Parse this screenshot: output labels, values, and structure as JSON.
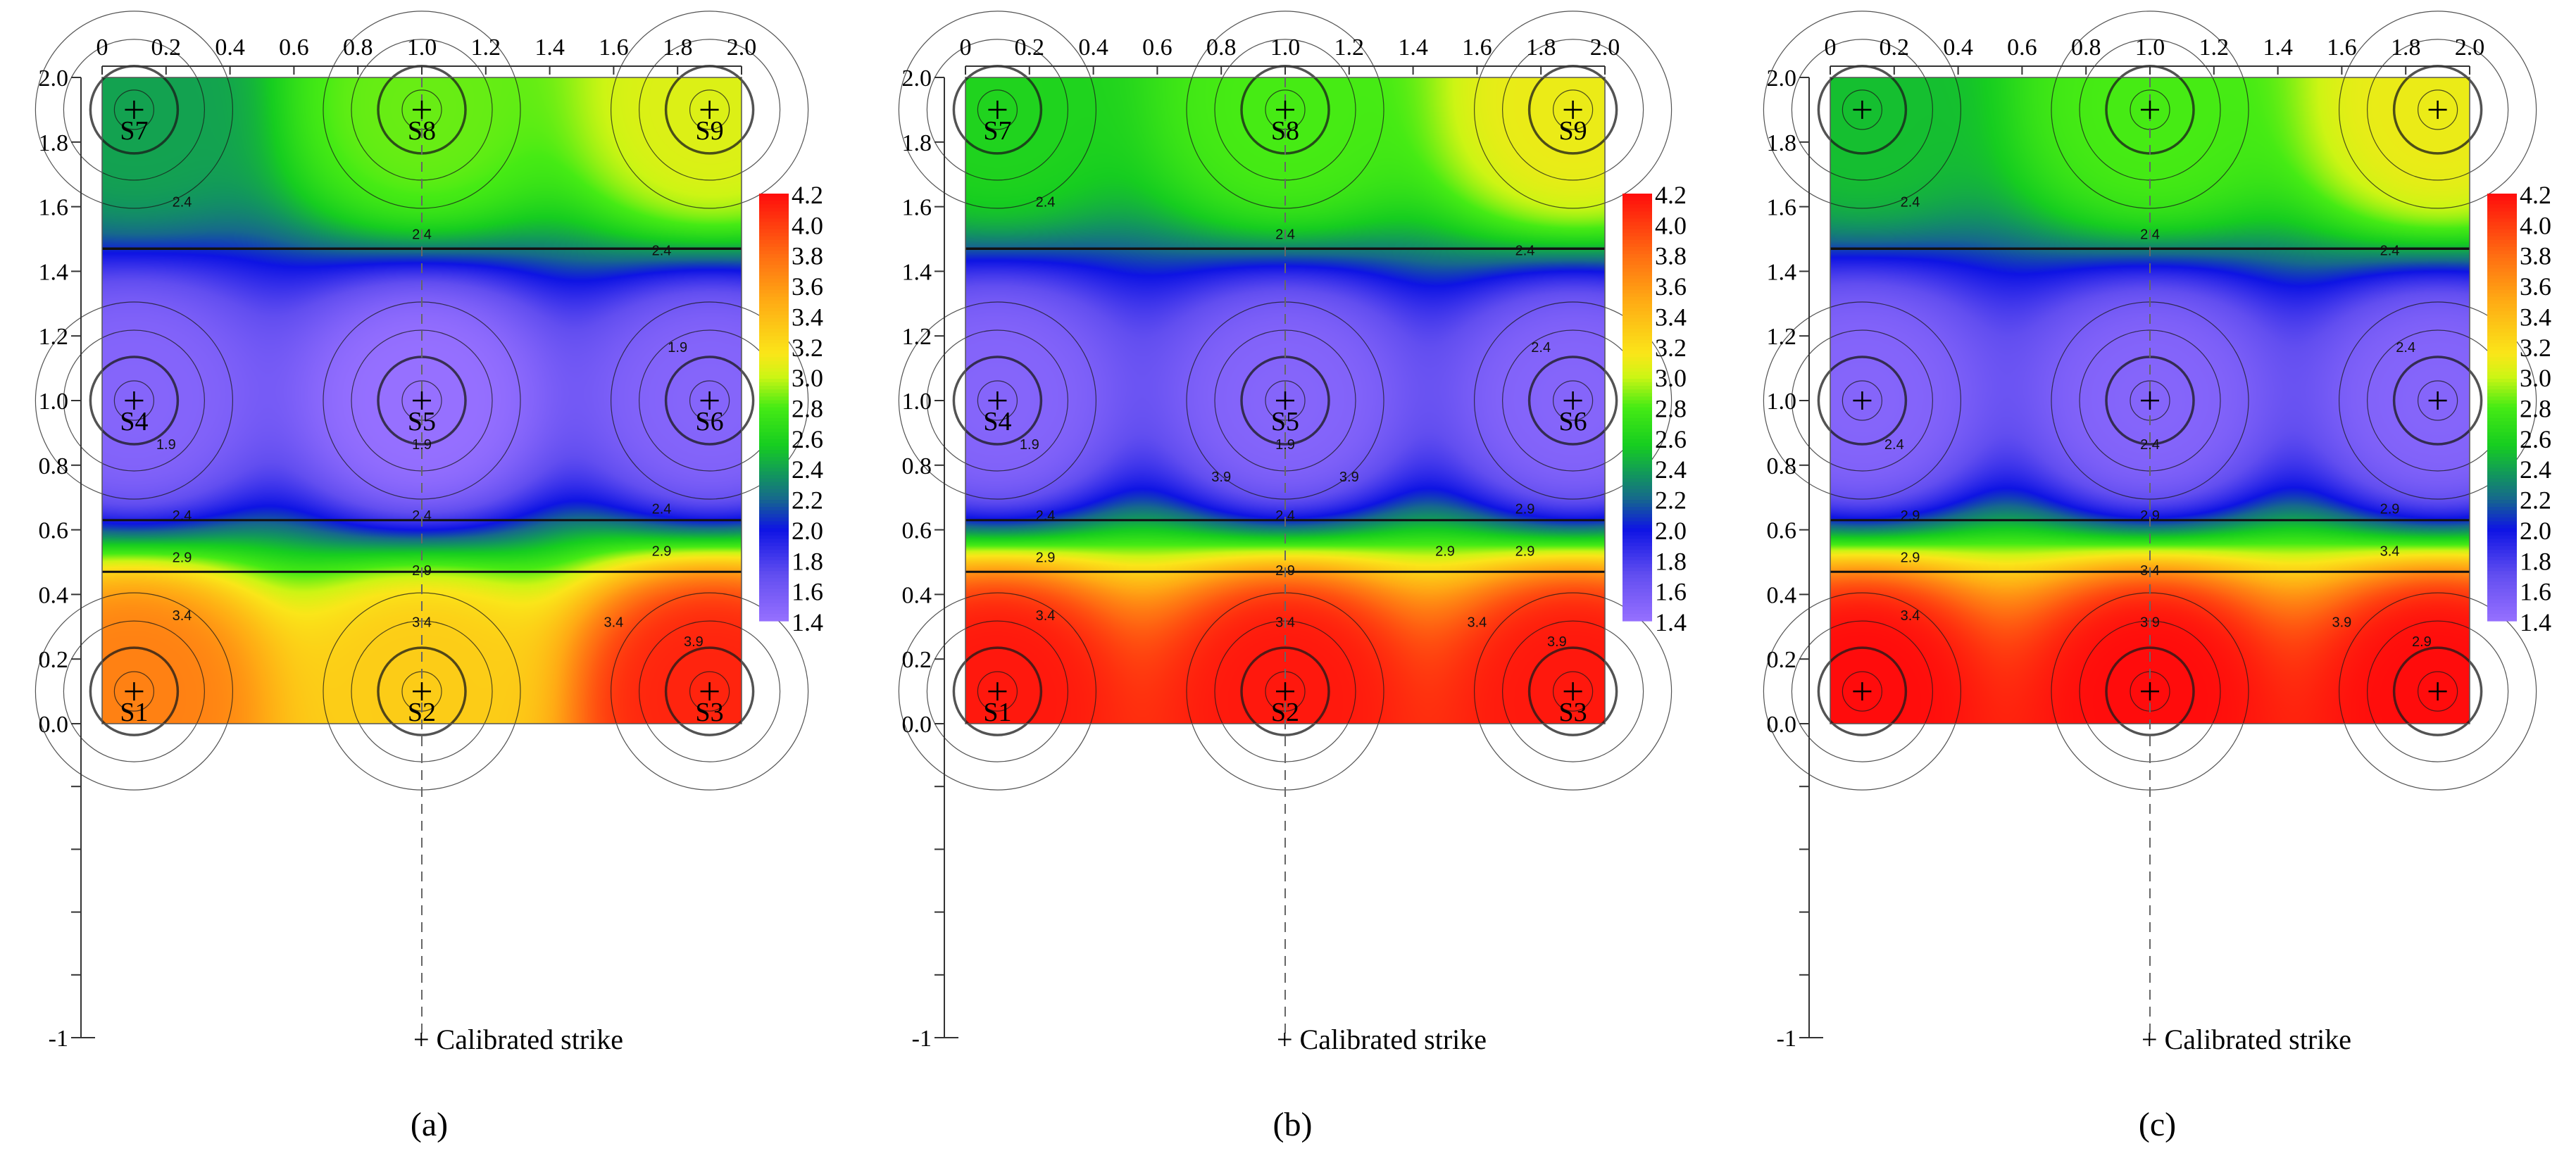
{
  "chart_data": [
    {
      "type": "heatmap",
      "caption": "(a)",
      "x_ticks": [
        "0",
        "0.2",
        "0.4",
        "0.6",
        "0.8",
        "1.0",
        "1.2",
        "1.4",
        "1.6",
        "1.8",
        "2.0"
      ],
      "y_ticks": [
        "0.0",
        "0.2",
        "0.4",
        "0.6",
        "0.8",
        "1.0",
        "1.2",
        "1.4",
        "1.6",
        "1.8",
        "2.0"
      ],
      "y_extended_min_label": "-1",
      "xlim": [
        0,
        2
      ],
      "ylim": [
        0,
        2
      ],
      "colorbar": {
        "ticks": [
          "4.2",
          "4.0",
          "3.8",
          "3.6",
          "3.4",
          "3.2",
          "3.0",
          "2.8",
          "2.6",
          "2.4",
          "2.2",
          "2.0",
          "1.8",
          "1.6",
          "1.4"
        ],
        "min": 1.4,
        "max": 4.2
      },
      "legend_label": "+ Calibrated strike",
      "sensors": [
        {
          "label": "S1",
          "x": 0.1,
          "y": 0.1,
          "value": 3.7
        },
        {
          "label": "S2",
          "x": 1.0,
          "y": 0.1,
          "value": 3.3
        },
        {
          "label": "S3",
          "x": 1.9,
          "y": 0.1,
          "value": 4.1
        },
        {
          "label": "S4",
          "x": 0.1,
          "y": 1.0,
          "value": 1.5
        },
        {
          "label": "S5",
          "x": 1.0,
          "y": 1.0,
          "value": 1.4
        },
        {
          "label": "S6",
          "x": 1.9,
          "y": 1.0,
          "value": 1.5
        },
        {
          "label": "S7",
          "x": 0.1,
          "y": 1.9,
          "value": 2.4
        },
        {
          "label": "S8",
          "x": 1.0,
          "y": 1.9,
          "value": 2.85
        },
        {
          "label": "S9",
          "x": 1.9,
          "y": 1.9,
          "value": 3.05
        }
      ],
      "contour_labels": [
        "2.4",
        "2.4",
        "2.4",
        "1.9",
        "1.9",
        "1.9",
        "2.4",
        "2.4",
        "2.4",
        "2.9",
        "2.9",
        "2.9",
        "3.4",
        "3.4",
        "3.4",
        "3.9"
      ],
      "show_sensor_labels": true
    },
    {
      "type": "heatmap",
      "caption": "(b)",
      "x_ticks": [
        "0",
        "0.2",
        "0.4",
        "0.6",
        "0.8",
        "1.0",
        "1.2",
        "1.4",
        "1.6",
        "1.8",
        "2.0"
      ],
      "y_ticks": [
        "0.0",
        "0.2",
        "0.4",
        "0.6",
        "0.8",
        "1.0",
        "1.2",
        "1.4",
        "1.6",
        "1.8",
        "2.0"
      ],
      "y_extended_min_label": "-1",
      "xlim": [
        0,
        2
      ],
      "ylim": [
        0,
        2
      ],
      "colorbar": {
        "ticks": [
          "4.2",
          "4.0",
          "3.8",
          "3.6",
          "3.4",
          "3.2",
          "3.0",
          "2.8",
          "2.6",
          "2.4",
          "2.2",
          "2.0",
          "1.8",
          "1.6",
          "1.4"
        ],
        "min": 1.4,
        "max": 4.2
      },
      "legend_label": "+ Calibrated strike",
      "sensors": [
        {
          "label": "S1",
          "x": 0.1,
          "y": 0.1,
          "value": 4.15
        },
        {
          "label": "S2",
          "x": 1.0,
          "y": 0.1,
          "value": 4.15
        },
        {
          "label": "S3",
          "x": 1.9,
          "y": 0.1,
          "value": 4.15
        },
        {
          "label": "S4",
          "x": 0.1,
          "y": 1.0,
          "value": 1.5
        },
        {
          "label": "S5",
          "x": 1.0,
          "y": 1.0,
          "value": 1.5
        },
        {
          "label": "S6",
          "x": 1.9,
          "y": 1.0,
          "value": 1.5
        },
        {
          "label": "S7",
          "x": 0.1,
          "y": 1.9,
          "value": 2.6
        },
        {
          "label": "S8",
          "x": 1.0,
          "y": 1.9,
          "value": 2.8
        },
        {
          "label": "S9",
          "x": 1.9,
          "y": 1.9,
          "value": 3.1
        }
      ],
      "contour_labels": [
        "2.4",
        "2.4",
        "2.4",
        "1.9",
        "1.9",
        "2.4",
        "2.4",
        "2.4",
        "2.9",
        "2.9",
        "2.9",
        "2.9",
        "3.4",
        "3.4",
        "3.4",
        "3.9",
        "3.9",
        "3.9",
        "2.9"
      ],
      "show_sensor_labels": true
    },
    {
      "type": "heatmap",
      "caption": "(c)",
      "x_ticks": [
        "0",
        "0.2",
        "0.4",
        "0.6",
        "0.8",
        "1.0",
        "1.2",
        "1.4",
        "1.6",
        "1.8",
        "2.0"
      ],
      "y_ticks": [
        "0.0",
        "0.2",
        "0.4",
        "0.6",
        "0.8",
        "1.0",
        "1.2",
        "1.4",
        "1.6",
        "1.8",
        "2.0"
      ],
      "y_extended_min_label": "-1",
      "xlim": [
        0,
        2
      ],
      "ylim": [
        0,
        2
      ],
      "colorbar": {
        "ticks": [
          "4.2",
          "4.0",
          "3.8",
          "3.6",
          "3.4",
          "3.2",
          "3.0",
          "2.8",
          "2.6",
          "2.4",
          "2.2",
          "2.0",
          "1.8",
          "1.6",
          "1.4"
        ],
        "min": 1.4,
        "max": 4.2
      },
      "legend_label": "+ Calibrated strike",
      "sensors": [
        {
          "label": "",
          "x": 0.1,
          "y": 0.1,
          "value": 4.2
        },
        {
          "label": "",
          "x": 1.0,
          "y": 0.1,
          "value": 4.2
        },
        {
          "label": "",
          "x": 1.9,
          "y": 0.1,
          "value": 4.2
        },
        {
          "label": "",
          "x": 0.1,
          "y": 1.0,
          "value": 1.5
        },
        {
          "label": "",
          "x": 1.0,
          "y": 1.0,
          "value": 1.5
        },
        {
          "label": "",
          "x": 1.9,
          "y": 1.0,
          "value": 1.5
        },
        {
          "label": "",
          "x": 0.1,
          "y": 1.9,
          "value": 2.5
        },
        {
          "label": "",
          "x": 1.0,
          "y": 1.9,
          "value": 2.8
        },
        {
          "label": "",
          "x": 1.9,
          "y": 1.9,
          "value": 3.1
        }
      ],
      "contour_labels": [
        "2.4",
        "2.4",
        "2.4",
        "2.4",
        "2.4",
        "2.4",
        "2.9",
        "2.9",
        "2.9",
        "2.9",
        "3.4",
        "3.4",
        "3.4",
        "3.9",
        "3.9",
        "2.9"
      ],
      "show_sensor_labels": false
    }
  ]
}
